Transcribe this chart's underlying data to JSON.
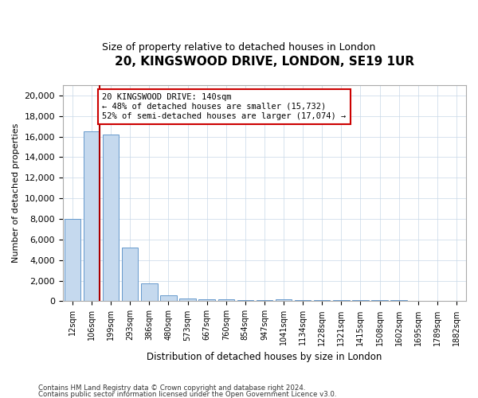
{
  "title": "20, KINGSWOOD DRIVE, LONDON, SE19 1UR",
  "subtitle": "Size of property relative to detached houses in London",
  "xlabel": "Distribution of detached houses by size in London",
  "ylabel": "Number of detached properties",
  "categories": [
    "12sqm",
    "106sqm",
    "199sqm",
    "293sqm",
    "386sqm",
    "480sqm",
    "573sqm",
    "667sqm",
    "760sqm",
    "854sqm",
    "947sqm",
    "1041sqm",
    "1134sqm",
    "1228sqm",
    "1321sqm",
    "1415sqm",
    "1508sqm",
    "1602sqm",
    "1695sqm",
    "1789sqm",
    "1882sqm"
  ],
  "values": [
    8000,
    16500,
    16200,
    5200,
    1700,
    550,
    300,
    200,
    170,
    150,
    130,
    200,
    130,
    130,
    130,
    120,
    130,
    80,
    60,
    60,
    60
  ],
  "bar_color": "#c5d9ee",
  "bar_edge_color": "#6699cc",
  "property_line_color": "#aa0000",
  "property_line_x": 1.42,
  "annotation_text": "20 KINGSWOOD DRIVE: 140sqm\n← 48% of detached houses are smaller (15,732)\n52% of semi-detached houses are larger (17,074) →",
  "annotation_box_color": "#cc0000",
  "ylim": [
    0,
    21000
  ],
  "yticks": [
    0,
    2000,
    4000,
    6000,
    8000,
    10000,
    12000,
    14000,
    16000,
    18000,
    20000
  ],
  "footer_line1": "Contains HM Land Registry data © Crown copyright and database right 2024.",
  "footer_line2": "Contains public sector information licensed under the Open Government Licence v3.0.",
  "bg_color": "#ffffff",
  "grid_color": "#c8d8e8"
}
